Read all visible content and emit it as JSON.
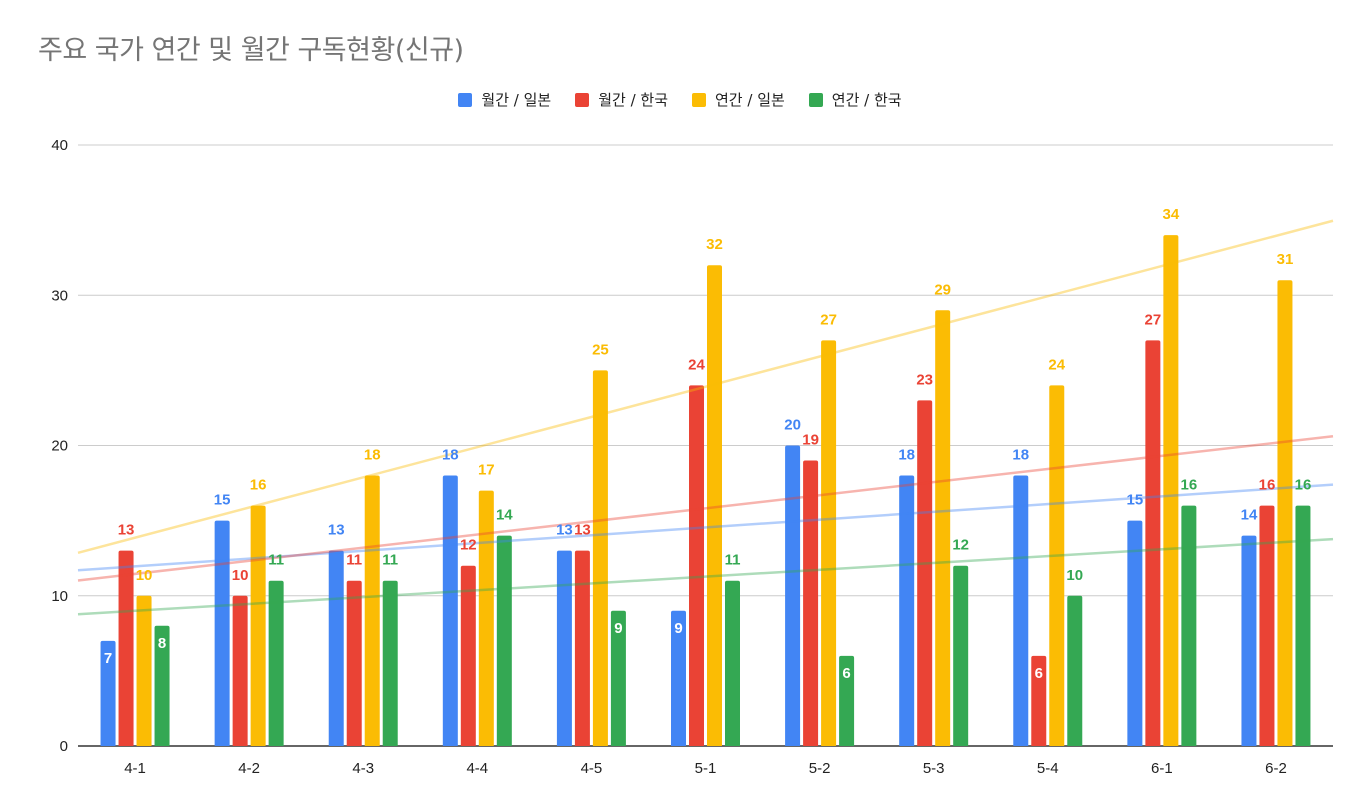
{
  "chart_data": {
    "type": "bar",
    "title": "주요 국가 연간 및 월간 구독현황(신규)",
    "xlabel": "",
    "ylabel": "",
    "categories": [
      "4-1",
      "4-2",
      "4-3",
      "4-4",
      "4-5",
      "5-1",
      "5-2",
      "5-3",
      "5-4",
      "6-1",
      "6-2"
    ],
    "series": [
      {
        "name": "월간 / 일본",
        "color": "#4285f4",
        "values": [
          7,
          15,
          13,
          18,
          13,
          9,
          20,
          18,
          18,
          15,
          14
        ]
      },
      {
        "name": "월간 / 한국",
        "color": "#ea4335",
        "values": [
          13,
          10,
          11,
          12,
          13,
          24,
          19,
          23,
          6,
          27,
          16
        ]
      },
      {
        "name": "연간 / 일본",
        "color": "#fbbc04",
        "values": [
          10,
          16,
          18,
          17,
          25,
          32,
          27,
          29,
          24,
          34,
          31
        ]
      },
      {
        "name": "연간 / 한국",
        "color": "#34a853",
        "values": [
          8,
          11,
          11,
          14,
          9,
          11,
          6,
          12,
          10,
          16,
          16
        ]
      }
    ],
    "trendlines": "linear, one per series",
    "ylim": [
      0,
      40
    ],
    "yticks": [
      0,
      10,
      20,
      30,
      40
    ],
    "grid": true,
    "legend": "top-center"
  }
}
